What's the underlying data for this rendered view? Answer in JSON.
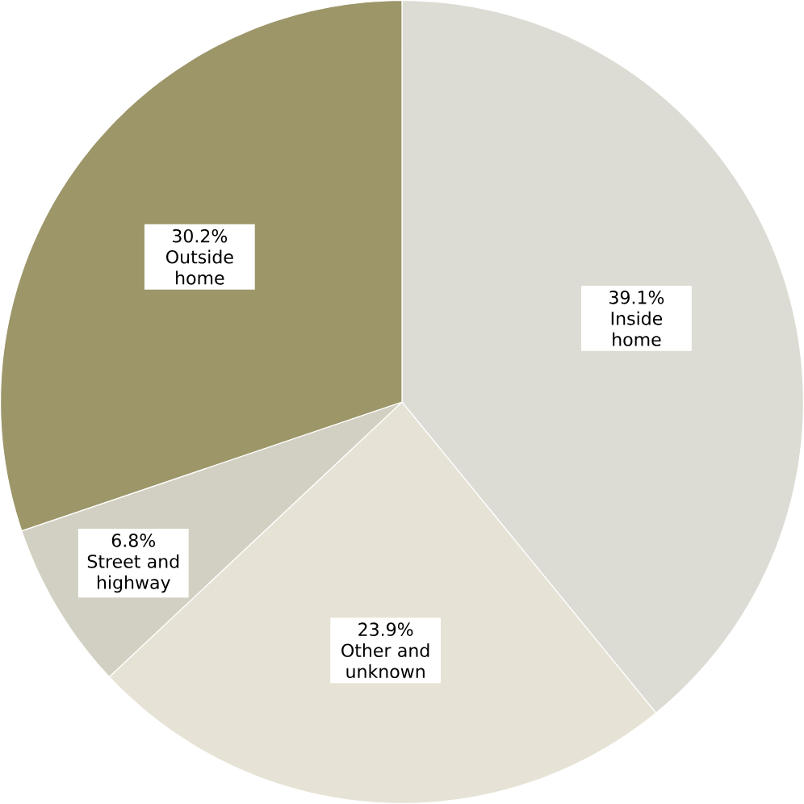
{
  "chart_data": {
    "type": "pie",
    "categories": [
      "Inside home",
      "Other and unknown",
      "Street and highway",
      "Outside home"
    ],
    "values": [
      39.1,
      23.9,
      6.8,
      30.2
    ],
    "colors": [
      "#dcdcd4",
      "#e6e3d6",
      "#d2d0c2",
      "#9c9669"
    ],
    "value_labels": [
      "39.1%",
      "23.9%",
      "6.8%",
      "30.2%"
    ]
  }
}
